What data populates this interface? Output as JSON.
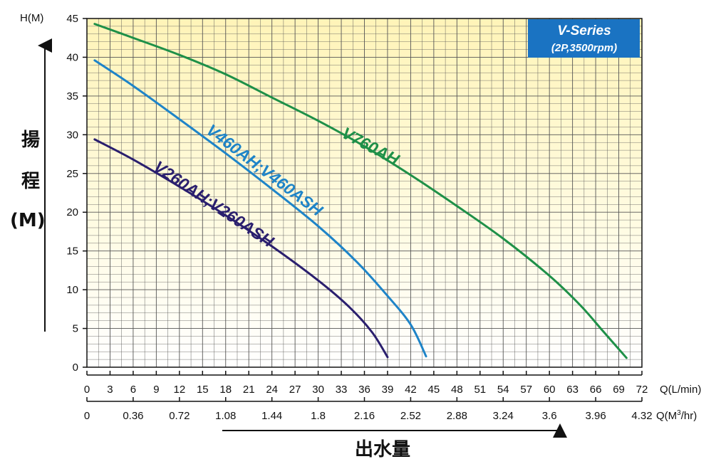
{
  "badge": {
    "title": "V-Series",
    "subtitle": "(2P,3500rpm)",
    "color": "#1a73c2"
  },
  "y_axis": {
    "label": "H(M)",
    "side_title_1": "揚",
    "side_title_2": "程",
    "side_title_3": "(M)"
  },
  "x_axis": {
    "label_lmin": "Q(L/min)",
    "label_m3hr_prefix": "Q(M",
    "label_m3hr_sup": "3",
    "label_m3hr_suffix": "/hr)",
    "bottom_title": "出水量"
  },
  "colors": {
    "plot_bg_top": "#fff4b8",
    "plot_bg_bottom": "#ffffff",
    "grid": "#555555",
    "v760": "#1e9048",
    "v460": "#1e84c8",
    "v260": "#2a1f6e"
  },
  "chart_data": {
    "type": "line",
    "xlabel": "Q(L/min)",
    "ylabel": "H(M)",
    "xlim": [
      0,
      72
    ],
    "ylim": [
      0,
      45
    ],
    "x_ticks": [
      "0",
      "3",
      "6",
      "9",
      "12",
      "15",
      "18",
      "21",
      "24",
      "27",
      "30",
      "33",
      "36",
      "39",
      "42",
      "45",
      "48",
      "51",
      "54",
      "57",
      "60",
      "63",
      "66",
      "69",
      "72"
    ],
    "y_ticks": [
      "0",
      "5",
      "10",
      "15",
      "20",
      "25",
      "30",
      "35",
      "40",
      "45"
    ],
    "x2_ticks": [
      "0",
      "0.36",
      "0.72",
      "1.08",
      "1.44",
      "1.8",
      "2.16",
      "2.52",
      "2.88",
      "3.24",
      "3.6",
      "3.96",
      "4.32"
    ],
    "grid": true,
    "series": [
      {
        "name": "V760AH",
        "points": [
          [
            1,
            44.3
          ],
          [
            6,
            42.5
          ],
          [
            12,
            40.3
          ],
          [
            18,
            37.8
          ],
          [
            24,
            34.8
          ],
          [
            30,
            31.8
          ],
          [
            36,
            28.5
          ],
          [
            42,
            24.8
          ],
          [
            48,
            20.8
          ],
          [
            54,
            16.6
          ],
          [
            60,
            11.8
          ],
          [
            64,
            8.0
          ],
          [
            67,
            4.6
          ],
          [
            70,
            1.2
          ]
        ]
      },
      {
        "name": "V460AH;V460ASH",
        "points": [
          [
            1,
            39.6
          ],
          [
            6,
            36.3
          ],
          [
            12,
            32.0
          ],
          [
            18,
            27.6
          ],
          [
            24,
            23.0
          ],
          [
            30,
            18.2
          ],
          [
            35,
            13.6
          ],
          [
            39,
            9.2
          ],
          [
            42,
            5.5
          ],
          [
            44,
            1.4
          ]
        ]
      },
      {
        "name": "V260AH;V260ASH",
        "points": [
          [
            1,
            29.4
          ],
          [
            6,
            26.8
          ],
          [
            12,
            23.3
          ],
          [
            18,
            19.6
          ],
          [
            24,
            15.6
          ],
          [
            30,
            11.2
          ],
          [
            34,
            7.8
          ],
          [
            37,
            4.5
          ],
          [
            39,
            1.3
          ]
        ]
      }
    ]
  }
}
